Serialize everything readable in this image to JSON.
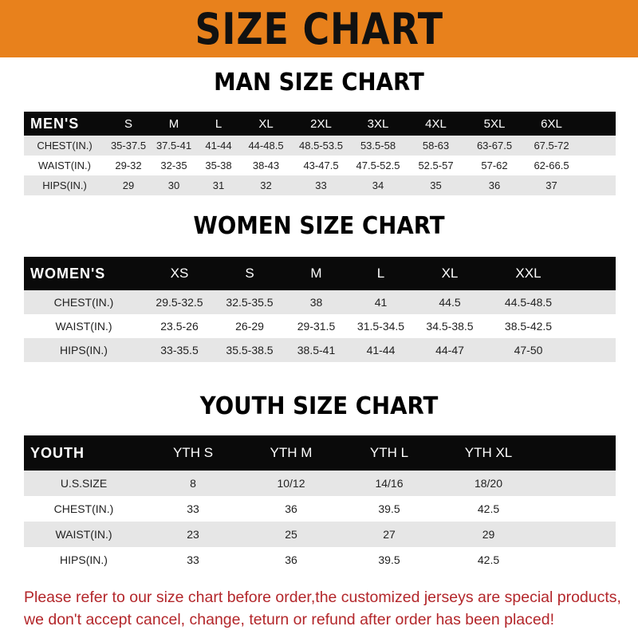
{
  "title": "SIZE CHART",
  "colors": {
    "banner": "#e8811c",
    "header_row": "#0a0a0a",
    "notice": "#b3262a"
  },
  "men": {
    "title": "MAN SIZE CHART",
    "header": [
      "MEN'S",
      "S",
      "M",
      "L",
      "XL",
      "2XL",
      "3XL",
      "4XL",
      "5XL",
      "6XL"
    ],
    "rows": [
      [
        "CHEST(IN.)",
        "35-37.5",
        "37.5-41",
        "41-44",
        "44-48.5",
        "48.5-53.5",
        "53.5-58",
        "58-63",
        "63-67.5",
        "67.5-72"
      ],
      [
        "WAIST(IN.)",
        "29-32",
        "32-35",
        "35-38",
        "38-43",
        "43-47.5",
        "47.5-52.5",
        "52.5-57",
        "57-62",
        "62-66.5"
      ],
      [
        "HIPS(IN.)",
        "29",
        "30",
        "31",
        "32",
        "33",
        "34",
        "35",
        "36",
        "37"
      ]
    ]
  },
  "women": {
    "title": "WOMEN SIZE CHART",
    "header": [
      "WOMEN'S",
      "XS",
      "S",
      "M",
      "L",
      "XL",
      "XXL"
    ],
    "rows": [
      [
        "CHEST(IN.)",
        "29.5-32.5",
        "32.5-35.5",
        "38",
        "41",
        "44.5",
        "44.5-48.5"
      ],
      [
        "WAIST(IN.)",
        "23.5-26",
        "26-29",
        "29-31.5",
        "31.5-34.5",
        "34.5-38.5",
        "38.5-42.5"
      ],
      [
        "HIPS(IN.)",
        "33-35.5",
        "35.5-38.5",
        "38.5-41",
        "41-44",
        "44-47",
        "47-50"
      ]
    ]
  },
  "youth": {
    "title": "YOUTH SIZE CHART",
    "header": [
      "YOUTH",
      "YTH S",
      "YTH M",
      "YTH L",
      "YTH XL"
    ],
    "rows": [
      [
        "U.S.SIZE",
        "8",
        "10/12",
        "14/16",
        "18/20"
      ],
      [
        "CHEST(IN.)",
        "33",
        "36",
        "39.5",
        "42.5"
      ],
      [
        "WAIST(IN.)",
        "23",
        "25",
        "27",
        "29"
      ],
      [
        "HIPS(IN.)",
        "33",
        "36",
        "39.5",
        "42.5"
      ]
    ]
  },
  "notice": {
    "line1": "Please refer to our size chart before order,the customized jerseys are special products,",
    "line2": "we don't accept cancel, change, teturn or refund after order has been placed!"
  }
}
